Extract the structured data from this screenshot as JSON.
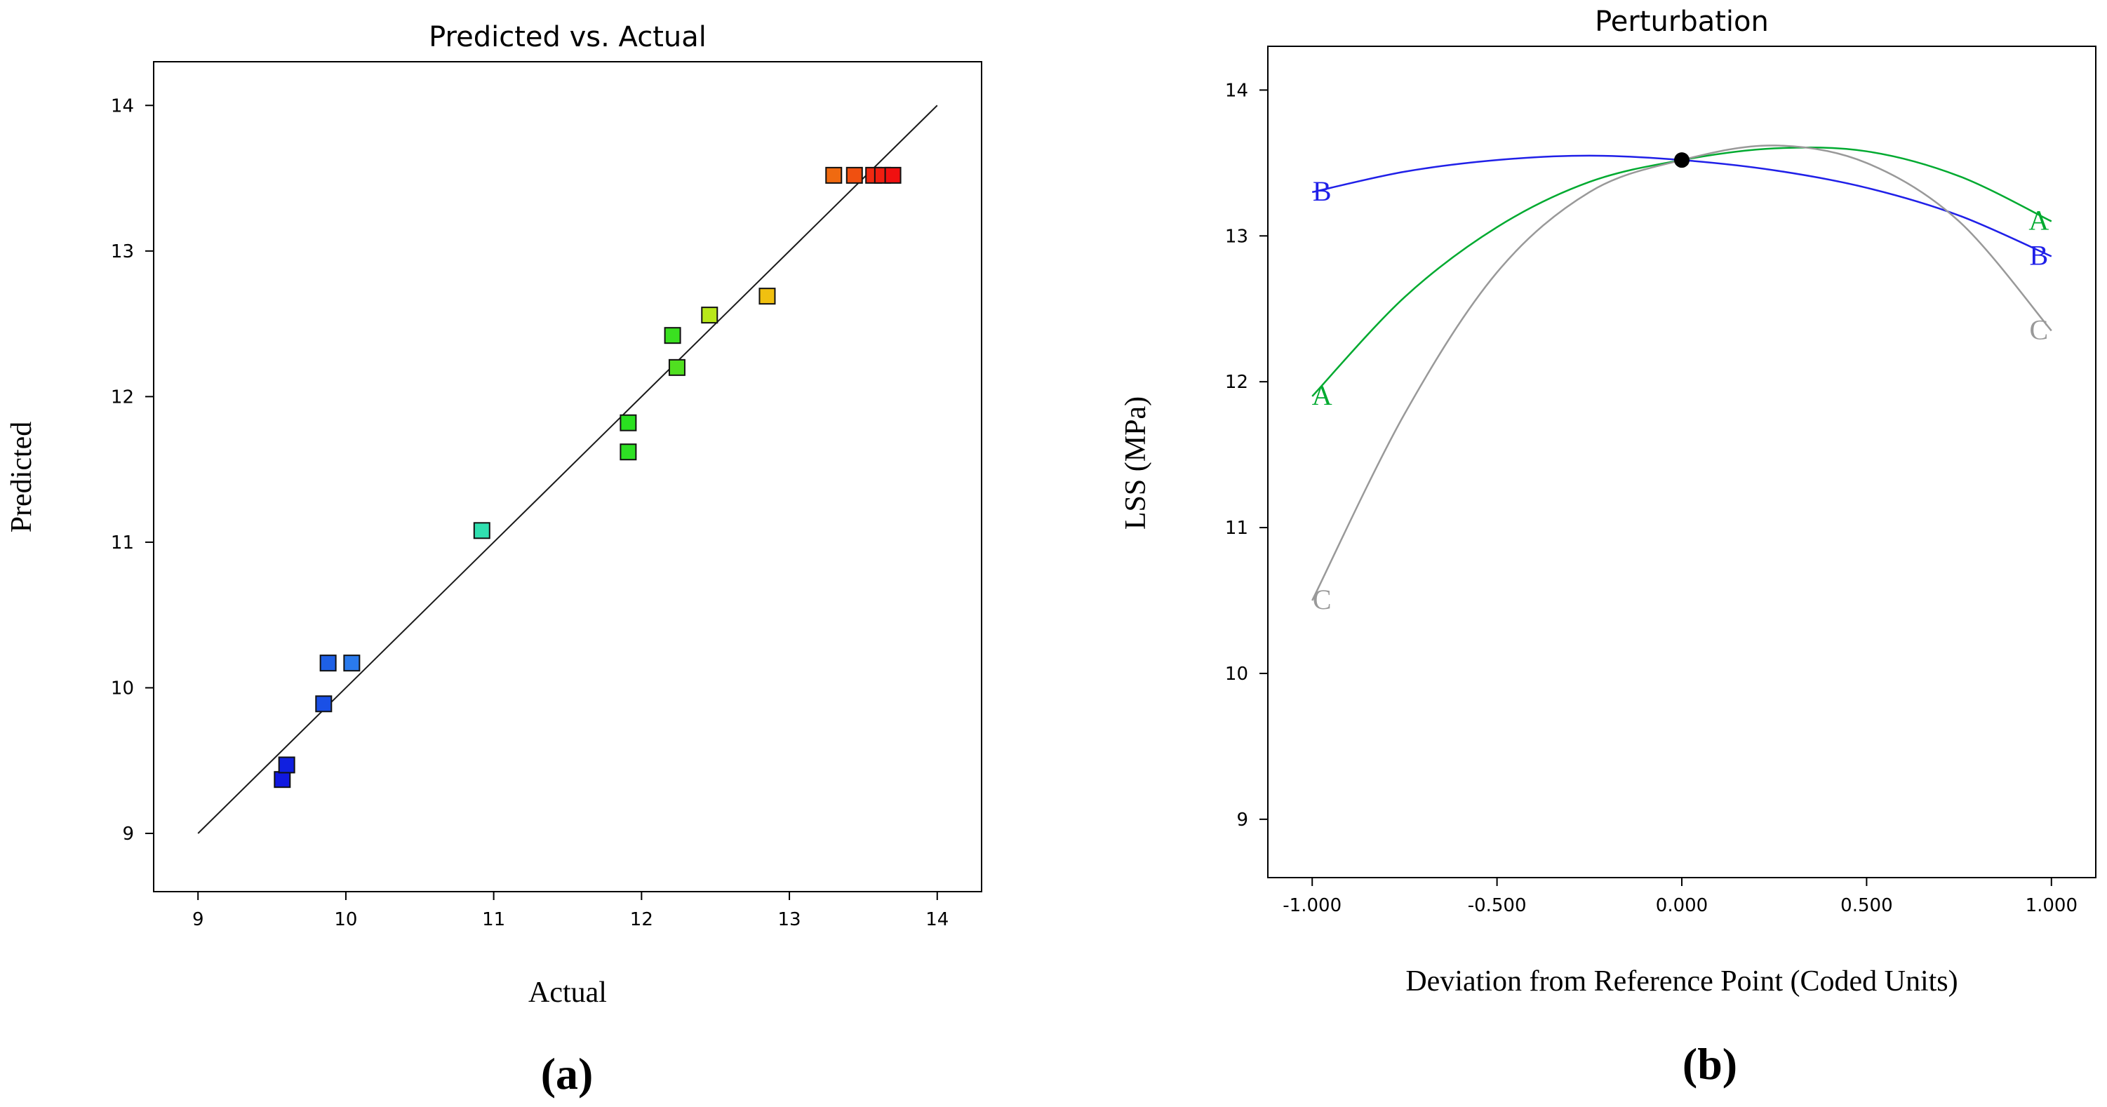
{
  "chart_data": [
    {
      "type": "scatter",
      "title": "Predicted vs. Actual",
      "xlabel": "Actual",
      "ylabel": "Predicted",
      "panel_label": "(a)",
      "xlim": [
        8.7,
        14.3
      ],
      "ylim": [
        8.6,
        14.3
      ],
      "xticks": [
        "9",
        "10",
        "11",
        "12",
        "13",
        "14"
      ],
      "yticks": [
        "9",
        "10",
        "11",
        "12",
        "13",
        "14"
      ],
      "reference_line": {
        "x": [
          9,
          14
        ],
        "y": [
          9,
          14
        ]
      },
      "points": [
        {
          "x": 9.57,
          "y": 9.37,
          "color": "#1018e0"
        },
        {
          "x": 9.6,
          "y": 9.47,
          "color": "#1020e0"
        },
        {
          "x": 9.85,
          "y": 9.89,
          "color": "#1a50e6"
        },
        {
          "x": 9.88,
          "y": 10.17,
          "color": "#1e60e6"
        },
        {
          "x": 10.04,
          "y": 10.17,
          "color": "#2a7aec"
        },
        {
          "x": 10.92,
          "y": 11.08,
          "color": "#30e0b0"
        },
        {
          "x": 11.91,
          "y": 11.82,
          "color": "#2ae020"
        },
        {
          "x": 11.91,
          "y": 11.62,
          "color": "#2ee024"
        },
        {
          "x": 12.21,
          "y": 12.42,
          "color": "#3ae020"
        },
        {
          "x": 12.24,
          "y": 12.2,
          "color": "#50e020"
        },
        {
          "x": 12.46,
          "y": 12.56,
          "color": "#b8e81a"
        },
        {
          "x": 12.85,
          "y": 12.69,
          "color": "#f0c010"
        },
        {
          "x": 13.3,
          "y": 13.52,
          "color": "#f06a10"
        },
        {
          "x": 13.44,
          "y": 13.52,
          "color": "#f05010"
        },
        {
          "x": 13.57,
          "y": 13.52,
          "color": "#f02a10"
        },
        {
          "x": 13.63,
          "y": 13.52,
          "color": "#f01e10"
        },
        {
          "x": 13.7,
          "y": 13.52,
          "color": "#f01010"
        }
      ]
    },
    {
      "type": "line",
      "title": "Perturbation",
      "xlabel": "Deviation from Reference Point (Coded Units)",
      "ylabel": "LSS (MPa)",
      "panel_label": "(b)",
      "xlim": [
        -1.12,
        1.12
      ],
      "ylim": [
        8.6,
        14.3
      ],
      "xticks": [
        "-1.000",
        "-0.500",
        "0.000",
        "0.500",
        "1.000"
      ],
      "yticks": [
        "9",
        "10",
        "11",
        "12",
        "13",
        "14"
      ],
      "reference_point": {
        "x": 0,
        "y": 13.52
      },
      "series": [
        {
          "name": "A",
          "color": "#00aa30",
          "x": [
            -1.0,
            -0.75,
            -0.5,
            -0.25,
            0.0,
            0.25,
            0.5,
            0.75,
            1.0
          ],
          "y": [
            11.9,
            12.58,
            13.06,
            13.37,
            13.52,
            13.6,
            13.58,
            13.41,
            13.1
          ]
        },
        {
          "name": "B",
          "color": "#2020e8",
          "x": [
            -1.0,
            -0.75,
            -0.5,
            -0.25,
            0.0,
            0.25,
            0.5,
            0.75,
            1.0
          ],
          "y": [
            13.3,
            13.44,
            13.52,
            13.55,
            13.52,
            13.45,
            13.33,
            13.14,
            12.86
          ]
        },
        {
          "name": "C",
          "color": "#999999",
          "x": [
            -1.0,
            -0.75,
            -0.5,
            -0.25,
            0.0,
            0.25,
            0.5,
            0.75,
            1.0
          ],
          "y": [
            10.5,
            11.78,
            12.75,
            13.3,
            13.52,
            13.62,
            13.5,
            13.1,
            12.35
          ]
        }
      ]
    }
  ]
}
